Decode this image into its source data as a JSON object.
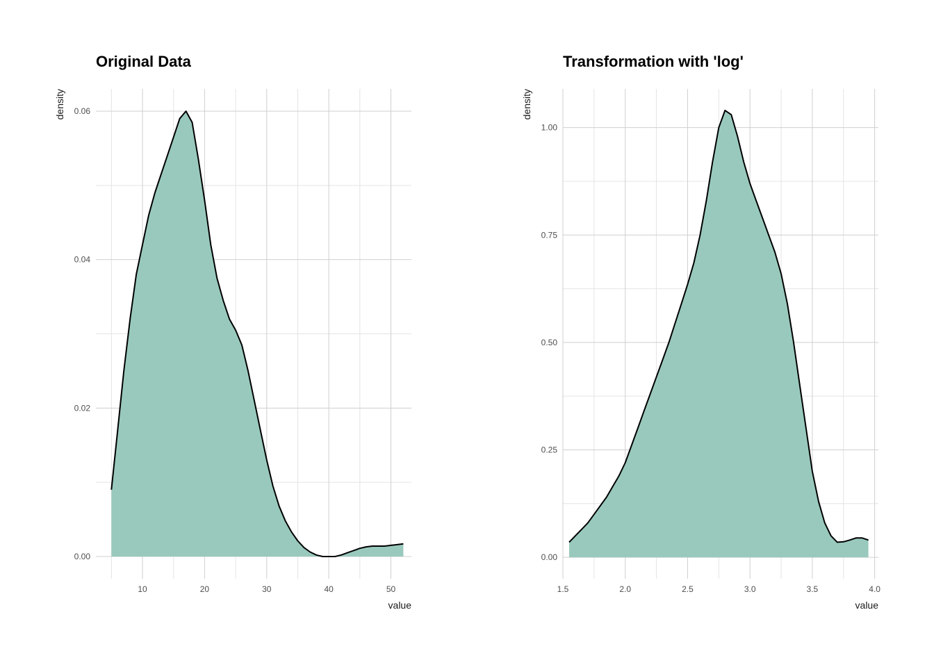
{
  "chart_data": [
    {
      "type": "area",
      "title": "Original Data",
      "xlabel": "value",
      "ylabel": "density",
      "xlim": [
        2.5,
        53.3
      ],
      "ylim": [
        -0.003,
        0.063
      ],
      "xticks": [
        10,
        20,
        30,
        40,
        50
      ],
      "yticks": [
        0,
        0.02,
        0.04,
        0.06
      ],
      "ytick_labels": [
        "0.00",
        "0.02",
        "0.04",
        "0.06"
      ],
      "xtick_labels": [
        "10",
        "20",
        "30",
        "40",
        "50"
      ],
      "grid": true,
      "fill_color": "#99c9bd",
      "line_color": "#000000",
      "x": [
        5,
        6,
        7,
        8,
        9,
        10,
        11,
        12,
        13,
        14,
        15,
        16,
        17,
        18,
        19,
        20,
        21,
        22,
        23,
        24,
        25,
        26,
        27,
        28,
        29,
        30,
        31,
        32,
        33,
        34,
        35,
        36,
        37,
        38,
        39,
        40,
        41,
        42,
        43,
        44,
        45,
        46,
        47,
        48,
        49,
        50,
        51,
        52
      ],
      "y": [
        0.009,
        0.017,
        0.025,
        0.032,
        0.038,
        0.042,
        0.046,
        0.049,
        0.0515,
        0.054,
        0.0565,
        0.059,
        0.06,
        0.0585,
        0.0535,
        0.048,
        0.042,
        0.0375,
        0.0345,
        0.032,
        0.0305,
        0.0285,
        0.025,
        0.021,
        0.017,
        0.013,
        0.0095,
        0.0068,
        0.0048,
        0.0033,
        0.0021,
        0.0012,
        0.0006,
        0.0002,
        0.0,
        0.0,
        0.0,
        0.0002,
        0.0005,
        0.0008,
        0.0011,
        0.0013,
        0.0014,
        0.0014,
        0.0014,
        0.0015,
        0.0016,
        0.0017
      ]
    },
    {
      "type": "area",
      "title": "Transformation with 'log'",
      "xlabel": "value",
      "ylabel": "density",
      "xlim": [
        1.5,
        4.03
      ],
      "ylim": [
        -0.05,
        1.09
      ],
      "xticks": [
        1.5,
        2.0,
        2.5,
        3.0,
        3.5,
        4.0
      ],
      "xtick_labels": [
        "1.5",
        "2.0",
        "2.5",
        "3.0",
        "3.5",
        "4.0"
      ],
      "yticks": [
        0,
        0.25,
        0.5,
        0.75,
        1.0
      ],
      "ytick_labels": [
        "0.00",
        "0.25",
        "0.50",
        "0.75",
        "1.00"
      ],
      "grid": true,
      "fill_color": "#99c9bd",
      "line_color": "#000000",
      "x": [
        1.55,
        1.6,
        1.65,
        1.7,
        1.75,
        1.8,
        1.85,
        1.9,
        1.95,
        2.0,
        2.05,
        2.1,
        2.15,
        2.2,
        2.25,
        2.3,
        2.35,
        2.4,
        2.45,
        2.5,
        2.55,
        2.6,
        2.65,
        2.7,
        2.75,
        2.8,
        2.85,
        2.9,
        2.95,
        3.0,
        3.05,
        3.1,
        3.15,
        3.2,
        3.25,
        3.3,
        3.35,
        3.4,
        3.45,
        3.5,
        3.55,
        3.6,
        3.65,
        3.7,
        3.75,
        3.8,
        3.85,
        3.9,
        3.95
      ],
      "y": [
        0.035,
        0.05,
        0.065,
        0.08,
        0.1,
        0.12,
        0.14,
        0.165,
        0.19,
        0.22,
        0.26,
        0.3,
        0.34,
        0.38,
        0.42,
        0.46,
        0.5,
        0.545,
        0.59,
        0.635,
        0.685,
        0.75,
        0.83,
        0.92,
        1.0,
        1.04,
        1.03,
        0.98,
        0.92,
        0.87,
        0.83,
        0.79,
        0.75,
        0.71,
        0.66,
        0.59,
        0.5,
        0.4,
        0.3,
        0.2,
        0.13,
        0.08,
        0.05,
        0.035,
        0.036,
        0.04,
        0.045,
        0.045,
        0.04
      ]
    }
  ]
}
